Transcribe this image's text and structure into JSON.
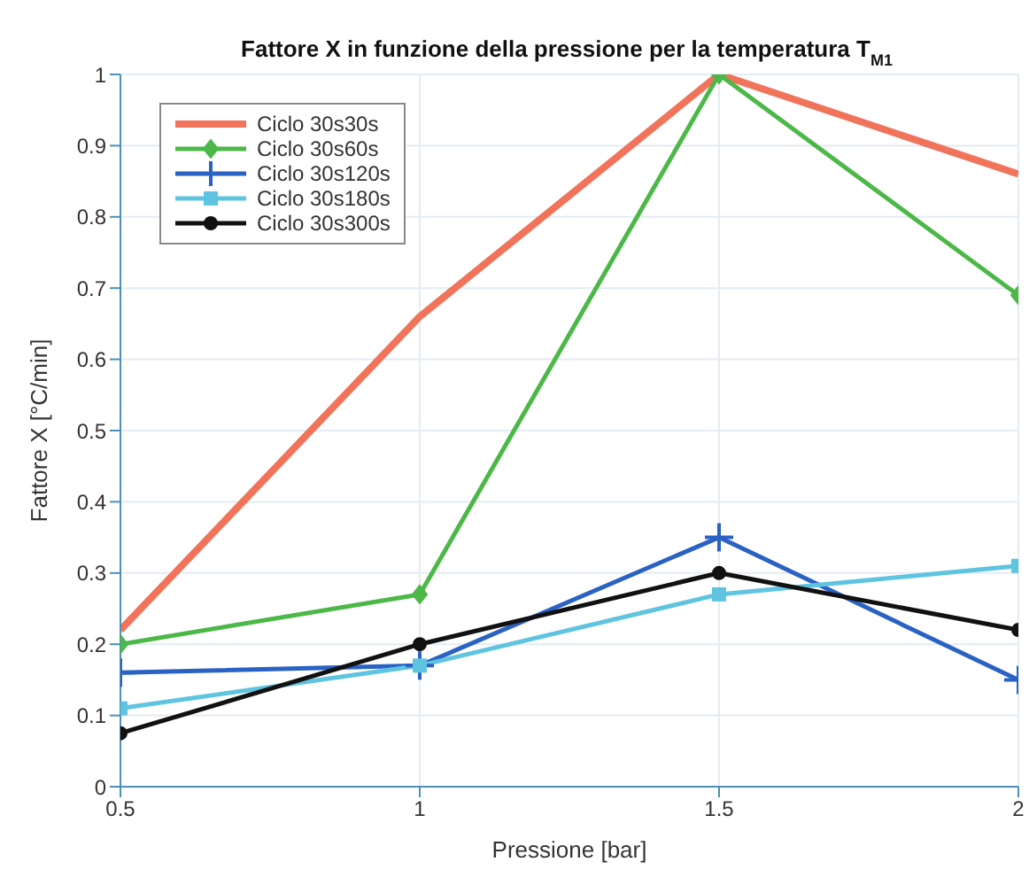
{
  "chart_data": {
    "type": "line",
    "title": "Fattore X in funzione della pressione per la temperatura T$_{M1}$",
    "xlabel": "Pressione [bar]",
    "ylabel": "Fattore X [°C/min]",
    "x": [
      0.5,
      1,
      1.5,
      2
    ],
    "xlim": [
      0.5,
      2
    ],
    "xticks": [
      0.5,
      1,
      1.5,
      2
    ],
    "ylim": [
      0,
      1
    ],
    "yticks": [
      0,
      0.1,
      0.2,
      0.3,
      0.4,
      0.5,
      0.6,
      0.7,
      0.8,
      0.9,
      1
    ],
    "grid": true,
    "legend": "top left",
    "series": [
      {
        "name": "Ciclo 30s30s",
        "color": "#f0735a",
        "marker": "none",
        "values": [
          0.22,
          0.66,
          1.0,
          0.86
        ]
      },
      {
        "name": "Ciclo 30s60s",
        "color": "#4cb848",
        "marker": "diamond",
        "values": [
          0.2,
          0.27,
          1.0,
          0.69
        ]
      },
      {
        "name": "Ciclo 30s120s",
        "color": "#2a62c4",
        "marker": "cross",
        "values": [
          0.16,
          0.17,
          0.35,
          0.15
        ]
      },
      {
        "name": "Ciclo 30s180s",
        "color": "#5ec4e0",
        "marker": "square",
        "values": [
          0.11,
          0.17,
          0.27,
          0.31
        ]
      },
      {
        "name": "Ciclo 30s300s",
        "color": "#111111",
        "marker": "circle",
        "values": [
          0.075,
          0.2,
          0.3,
          0.22
        ]
      }
    ]
  }
}
